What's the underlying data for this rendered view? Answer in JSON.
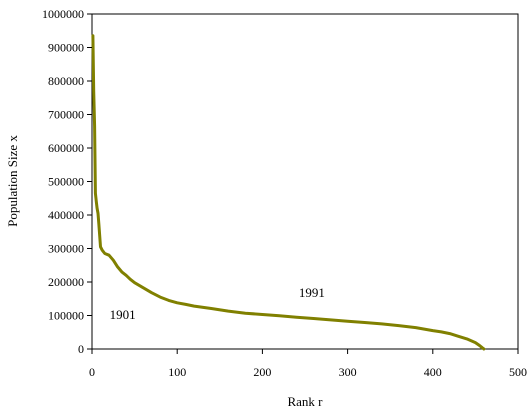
{
  "chart_data": {
    "type": "line",
    "title": "",
    "xlabel": "Rank r",
    "ylabel": "Population Size x",
    "xlim": [
      0,
      500
    ],
    "ylim": [
      0,
      1000000
    ],
    "x_ticks": [
      "0",
      "100",
      "200",
      "300",
      "400",
      "500"
    ],
    "y_ticks": [
      "0",
      "100000",
      "200000",
      "300000",
      "400000",
      "500000",
      "600000",
      "700000",
      "800000",
      "900000",
      "1000000"
    ],
    "grid": false,
    "legend": "none",
    "line_color": "#808000",
    "annotations": [
      {
        "text": "1901",
        "x": 36,
        "y": 90000
      },
      {
        "text": "1991",
        "x": 258,
        "y": 155000
      }
    ],
    "series": [
      {
        "x": [
          1,
          2,
          3,
          4,
          5,
          6,
          7,
          8,
          10,
          12,
          15,
          20,
          25,
          30,
          35,
          40,
          45,
          50,
          60,
          70,
          80,
          90,
          100,
          110,
          120,
          140,
          160,
          180,
          200,
          220,
          240,
          260,
          280,
          300,
          320,
          340,
          360,
          380,
          400,
          410,
          420,
          430,
          440,
          450,
          455,
          458,
          460
        ],
        "y": [
          935000,
          770000,
          665000,
          465000,
          440000,
          420000,
          405000,
          375000,
          305000,
          295000,
          285000,
          280000,
          265000,
          245000,
          230000,
          220000,
          208000,
          198000,
          183000,
          168000,
          155000,
          145000,
          138000,
          133000,
          128000,
          121000,
          113000,
          107000,
          103000,
          99000,
          95000,
          91000,
          87000,
          83000,
          79000,
          75000,
          70000,
          64000,
          55000,
          51000,
          46000,
          38000,
          30000,
          19000,
          10000,
          4000,
          0
        ]
      }
    ]
  }
}
